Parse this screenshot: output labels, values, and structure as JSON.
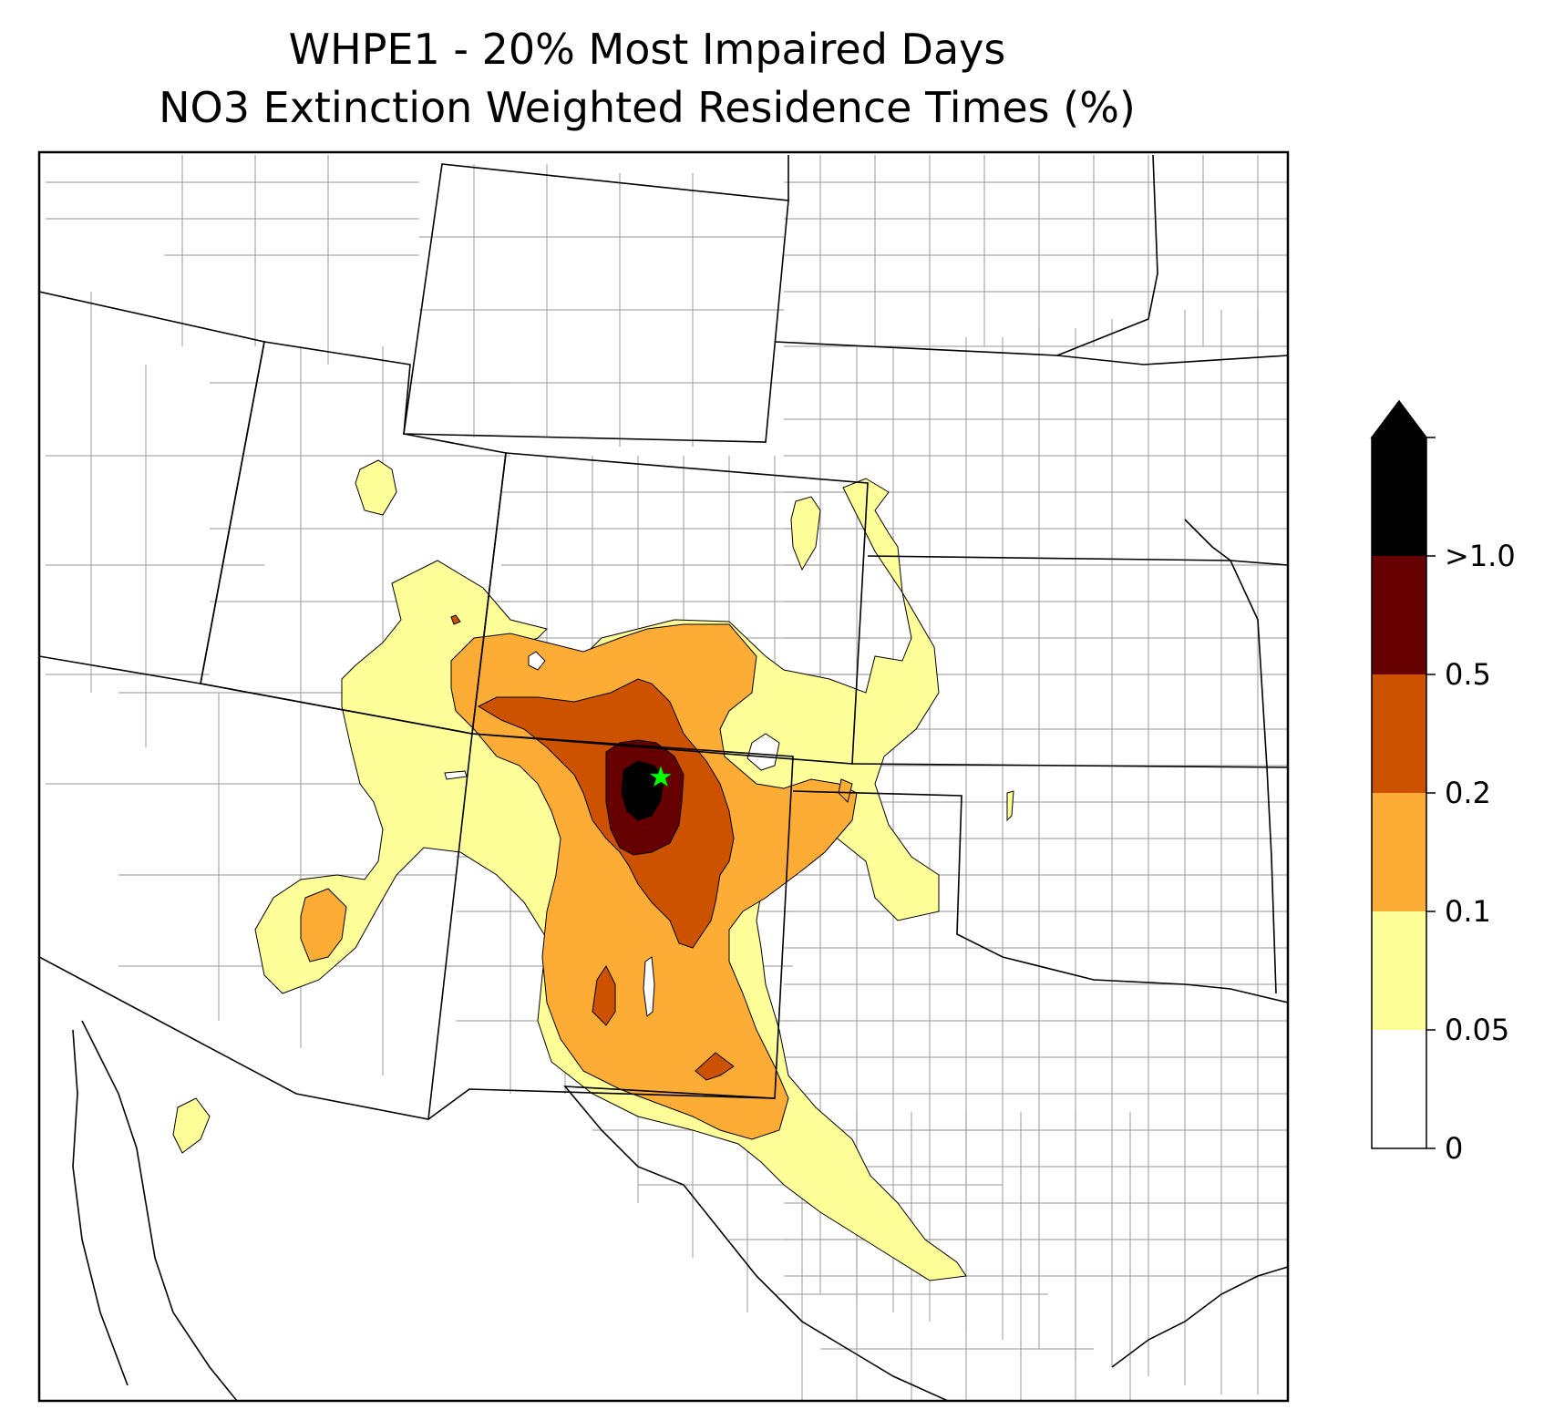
{
  "title": {
    "line1": "WHPE1 - 20% Most Impaired Days",
    "line2": "NO3 Extinction Weighted Residence Times (%)"
  },
  "colorbar": {
    "bins": [
      {
        "from": "0",
        "to": "0.05",
        "color": "#ffffff"
      },
      {
        "from": "0.05",
        "to": "0.1",
        "color": "#ffff99"
      },
      {
        "from": "0.1",
        "to": "0.2",
        "color": "#fdad35"
      },
      {
        "from": "0.2",
        "to": "0.5",
        "color": "#cc5200"
      },
      {
        "from": "0.5",
        "to": ">1.0",
        "color": "#660000"
      },
      {
        "from": ">1.0",
        "to": "",
        "color": "#000000"
      }
    ],
    "tick_labels": [
      "0",
      "0.05",
      "0.1",
      "0.2",
      "0.5",
      ">1.0"
    ],
    "extend": "max"
  },
  "legend_colors": {
    "state_border": "#000000",
    "county_border": "#aaaaaa",
    "receptor_marker": "#00ff00"
  },
  "receptor": {
    "marker": "star",
    "color": "#00ff00"
  }
}
